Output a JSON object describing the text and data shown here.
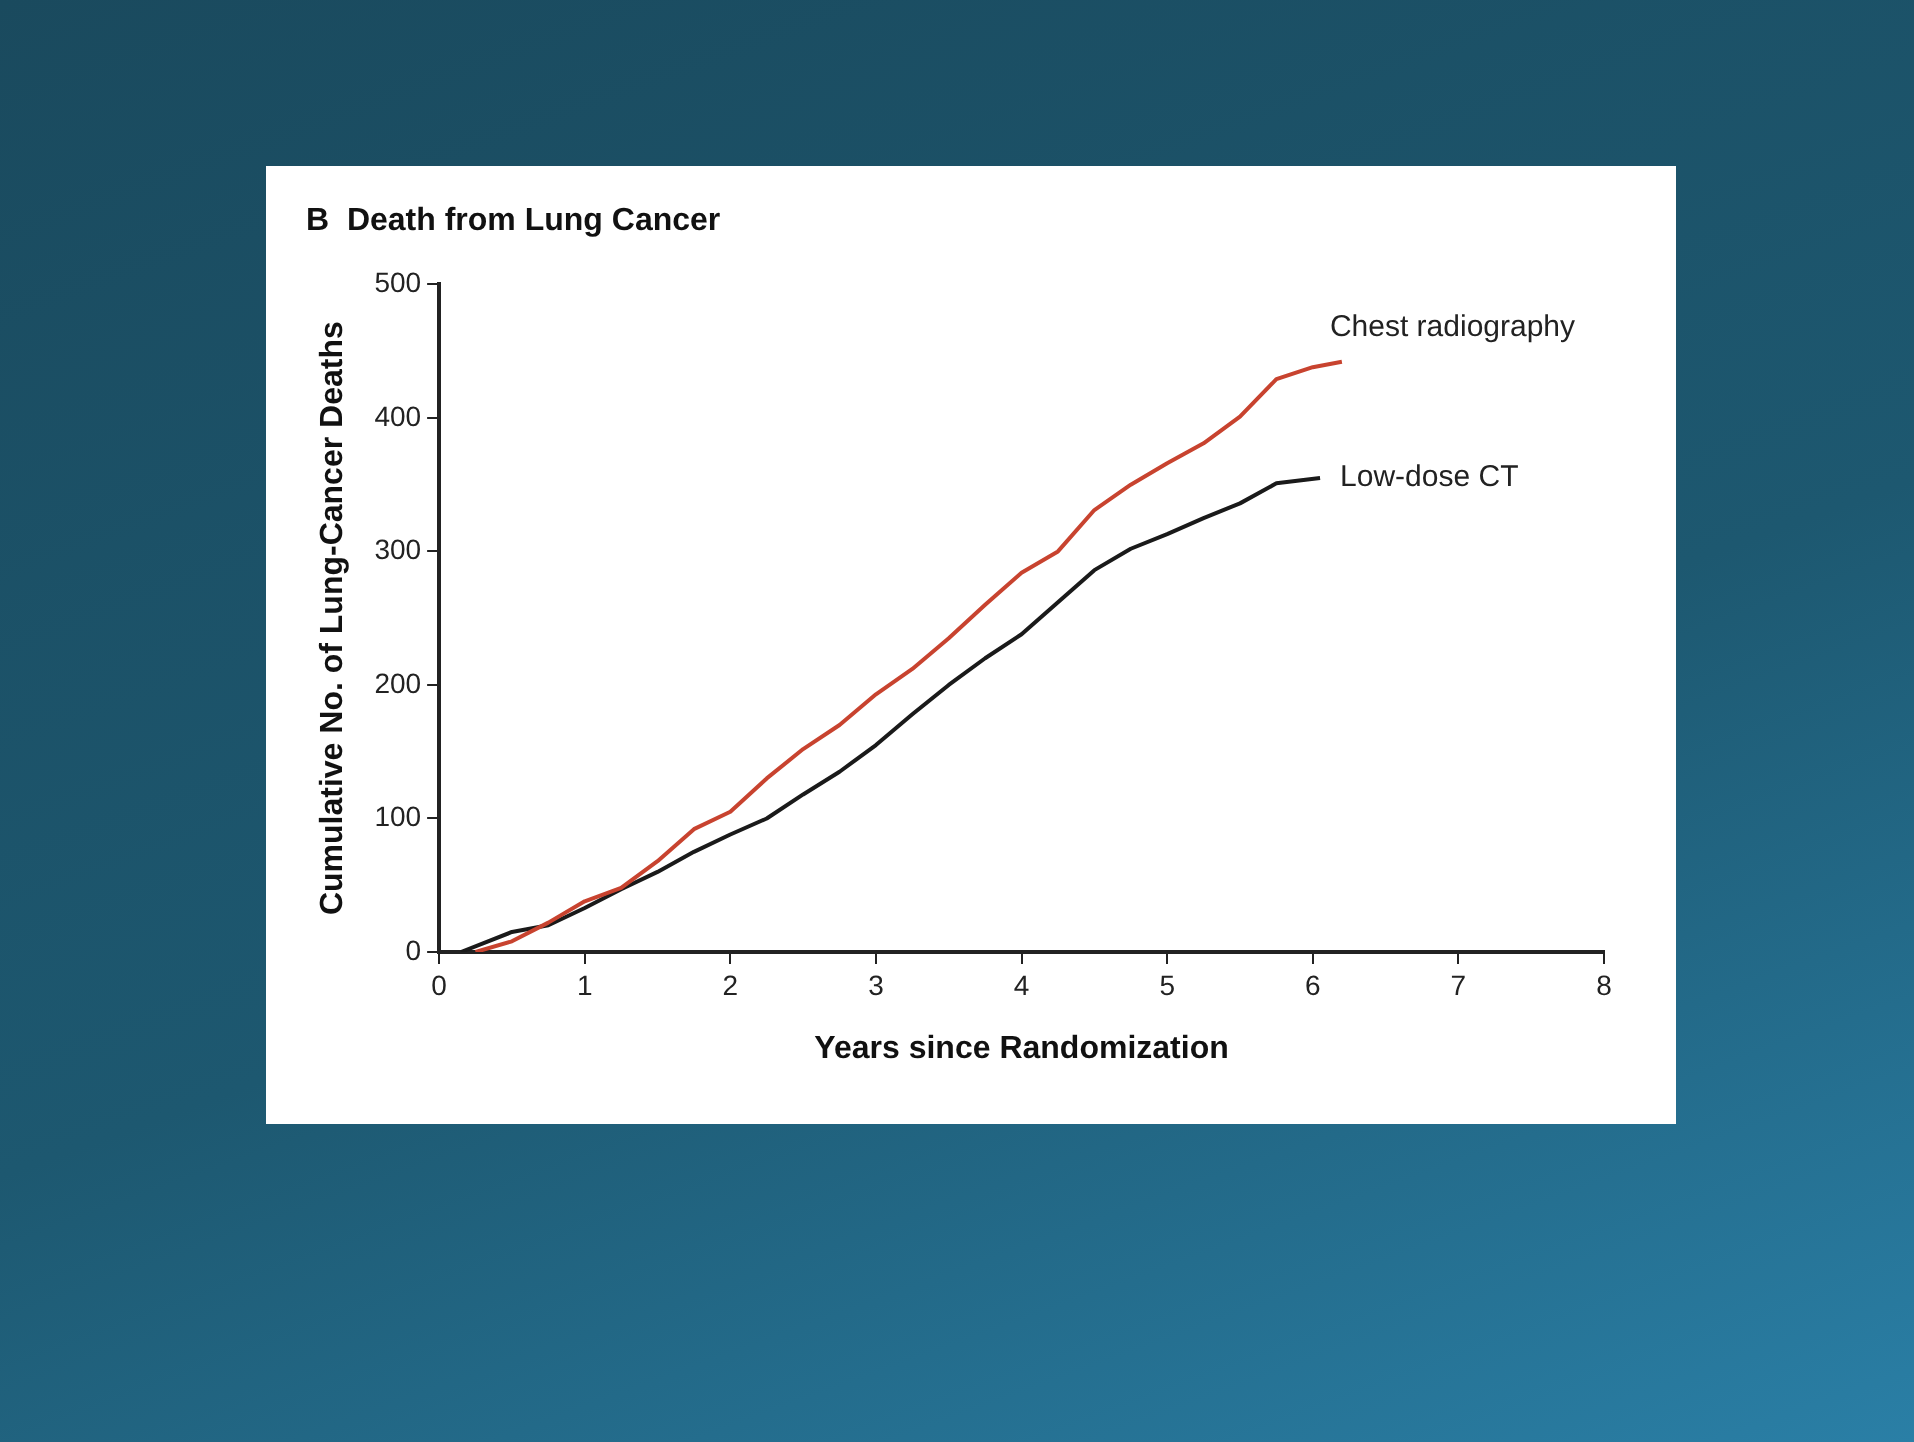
{
  "chart_data": {
    "type": "line",
    "title": "B  Death from Lung Cancer",
    "xlabel": "Years since Randomization",
    "ylabel": "Cumulative No. of Lung-Cancer Deaths",
    "xlim": [
      0,
      8
    ],
    "xticks": [
      0,
      1,
      2,
      3,
      4,
      5,
      6,
      7,
      8
    ],
    "ylim": [
      0,
      500
    ],
    "yticks": [
      0,
      100,
      200,
      300,
      400,
      500
    ],
    "grid": false,
    "legend": false,
    "marker": "none",
    "line_style": "solid",
    "series": [
      {
        "name": "Chest radiography",
        "color": "#c8432f",
        "x": [
          0.25,
          0.5,
          0.75,
          1.0,
          1.25,
          1.5,
          1.75,
          2.0,
          2.25,
          2.5,
          2.75,
          3.0,
          3.25,
          3.5,
          3.75,
          4.0,
          4.25,
          4.5,
          4.75,
          5.0,
          5.25,
          5.5,
          5.75,
          6.0,
          6.2
        ],
        "values": [
          0,
          8,
          22,
          38,
          48,
          68,
          92,
          105,
          130,
          152,
          170,
          193,
          212,
          235,
          260,
          284,
          300,
          331,
          350,
          366,
          381,
          401,
          429,
          438,
          442
        ]
      },
      {
        "name": "Low-dose CT",
        "color": "#1a1a1a",
        "x": [
          0.15,
          0.5,
          0.75,
          1.0,
          1.25,
          1.5,
          1.75,
          2.0,
          2.25,
          2.5,
          2.75,
          3.0,
          3.25,
          3.5,
          3.75,
          4.0,
          4.25,
          4.5,
          4.75,
          5.0,
          5.25,
          5.5,
          5.75,
          6.05
        ],
        "values": [
          0,
          15,
          20,
          33,
          47,
          60,
          75,
          88,
          100,
          118,
          135,
          155,
          178,
          200,
          220,
          238,
          262,
          286,
          302,
          313,
          325,
          336,
          351,
          355
        ]
      }
    ]
  }
}
